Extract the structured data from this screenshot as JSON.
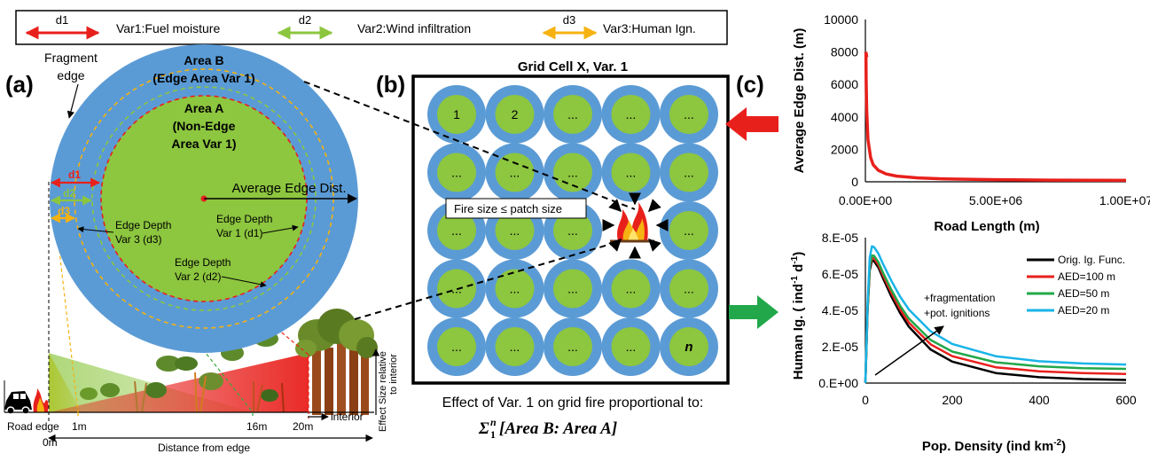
{
  "legend": {
    "d1": "d1",
    "var1": "Var1:Fuel moisture",
    "d2": "d2",
    "var2": "Var2:Wind infiltration",
    "d3": "d3",
    "var3": "Var3:Human Ign.",
    "colors": {
      "d1": "#e8201c",
      "d2": "#8cc63f",
      "d3": "#f5b211"
    }
  },
  "panel_a": {
    "label": "(a)",
    "fragment_edge": [
      "Fragment",
      "edge"
    ],
    "area_b": [
      "Area B",
      "(Edge Area Var 1)"
    ],
    "area_a": [
      "Area A",
      "(Non-Edge",
      "Area Var 1)"
    ],
    "avg_edge": "Average Edge Dist.",
    "d1": "d1",
    "d2": "d2",
    "d3": "d3",
    "edge_depth_3": [
      "Edge Depth",
      "Var 3 (d3)"
    ],
    "edge_depth_1": [
      "Edge Depth",
      "Var 1 (d1)"
    ],
    "edge_depth_2": [
      "Edge Depth",
      "Var 2 (d2)"
    ],
    "road_edge": "Road edge",
    "m0": "0m",
    "m1": "1m",
    "m16": "16m",
    "m20": "20m",
    "interior": "interior",
    "distance": "Distance from edge",
    "effect_size": [
      "Effect Size relative",
      "to interior"
    ],
    "colors": {
      "outer": "#5b9bd5",
      "inner": "#8dc63f"
    }
  },
  "panel_b": {
    "label": "(b)",
    "title": "Grid Cell X, Var. 1",
    "cells": [
      "1",
      "2",
      "...",
      "...",
      "...",
      "...",
      "...",
      "...",
      "...",
      "...",
      "...",
      "...",
      "...",
      "...",
      "...",
      "...",
      "...",
      "...",
      "...",
      "...",
      "...",
      "...",
      "...",
      "...",
      "n"
    ],
    "fire_label": "Fire size ≤ patch size",
    "caption": "Effect of Var. 1 on grid fire proportional to:",
    "formula_sigma": "Σ",
    "formula_sup": "n",
    "formula_sub": "1",
    "formula_body": "[Area B: Area A]"
  },
  "panel_c": {
    "label": "(c)"
  },
  "chart_data": [
    {
      "type": "line",
      "xlabel": "Road Length (m)",
      "ylabel": "Average Edge Dist. (m)",
      "xlim": [
        0,
        10000000
      ],
      "ylim": [
        0,
        10000
      ],
      "xticks": [
        "0.00E+00",
        "5.00E+06",
        "1.00E+07"
      ],
      "yticks": [
        "0",
        "2000",
        "4000",
        "6000",
        "8000",
        "10000"
      ],
      "series": [
        {
          "color": "#e8201c",
          "x": [
            20000,
            30000,
            50000,
            100000,
            200000,
            300000,
            500000,
            800000,
            1200000,
            2000000,
            3000000,
            5000000,
            7000000,
            10000000
          ],
          "y": [
            8000,
            6200,
            4400,
            2600,
            1500,
            1050,
            700,
            480,
            350,
            240,
            180,
            130,
            105,
            85
          ]
        }
      ]
    },
    {
      "type": "line",
      "xlabel": "Pop. Density (ind km",
      "xlabel_sup": "-2",
      "xlabel_end": ")",
      "ylabel": "Human Ig. ( ind",
      "ylabel_sup1": "-1",
      "ylabel_mid": " d",
      "ylabel_sup2": "-1",
      "ylabel_end": ")",
      "xlim": [
        0,
        600
      ],
      "ylim": [
        0,
        8e-05
      ],
      "xticks": [
        "0",
        "200",
        "400",
        "600"
      ],
      "yticks": [
        "0.E+00",
        "2.E-05",
        "4.E-05",
        "6.E-05",
        "8.E-05"
      ],
      "annotation": [
        "+fragmentation",
        "+pot. ignitions"
      ],
      "legend_position": "top-right",
      "series": [
        {
          "name": "Orig. Ig. Func.",
          "color": "#000000",
          "x": [
            0,
            5,
            10,
            15,
            20,
            30,
            40,
            60,
            80,
            100,
            150,
            200,
            300,
            400,
            500,
            600
          ],
          "y": [
            0,
            4e-05,
            6.2e-05,
            6.75e-05,
            6.7e-05,
            6.35e-05,
            5.8e-05,
            4.75e-05,
            3.85e-05,
            3.1e-05,
            1.85e-05,
            1.18e-05,
            5.5e-06,
            3.2e-06,
            2.2e-06,
            1.7e-06
          ]
        },
        {
          "name": "AED=100 m",
          "color": "#e8201c",
          "x": [
            0,
            5,
            10,
            15,
            20,
            30,
            40,
            60,
            80,
            100,
            150,
            200,
            300,
            400,
            500,
            600
          ],
          "y": [
            0,
            4.1e-05,
            6.35e-05,
            6.9e-05,
            6.85e-05,
            6.5e-05,
            5.95e-05,
            4.95e-05,
            4.05e-05,
            3.33e-05,
            2.13e-05,
            1.48e-05,
            8.7e-06,
            6.5e-06,
            5.5e-06,
            5e-06
          ]
        },
        {
          "name": "AED=50 m",
          "color": "#22a84a",
          "x": [
            0,
            5,
            10,
            15,
            20,
            30,
            40,
            60,
            80,
            100,
            150,
            200,
            300,
            400,
            500,
            600
          ],
          "y": [
            0,
            4.15e-05,
            6.45e-05,
            7.02e-05,
            7e-05,
            6.65e-05,
            6.1e-05,
            5.12e-05,
            4.25e-05,
            3.55e-05,
            2.37e-05,
            1.73e-05,
            1.14e-05,
            9.2e-06,
            8.2e-06,
            7.8e-06
          ]
        },
        {
          "name": "AED=20 m",
          "color": "#19b4e8",
          "x": [
            0,
            5,
            10,
            15,
            20,
            30,
            40,
            60,
            80,
            100,
            150,
            200,
            300,
            400,
            500,
            600
          ],
          "y": [
            0,
            4.4e-05,
            6.9e-05,
            7.52e-05,
            7.48e-05,
            7.12e-05,
            6.58e-05,
            5.62e-05,
            4.75e-05,
            4.05e-05,
            2.85e-05,
            2.15e-05,
            1.48e-05,
            1.2e-05,
            1.08e-05,
            1.02e-05
          ]
        }
      ]
    }
  ]
}
